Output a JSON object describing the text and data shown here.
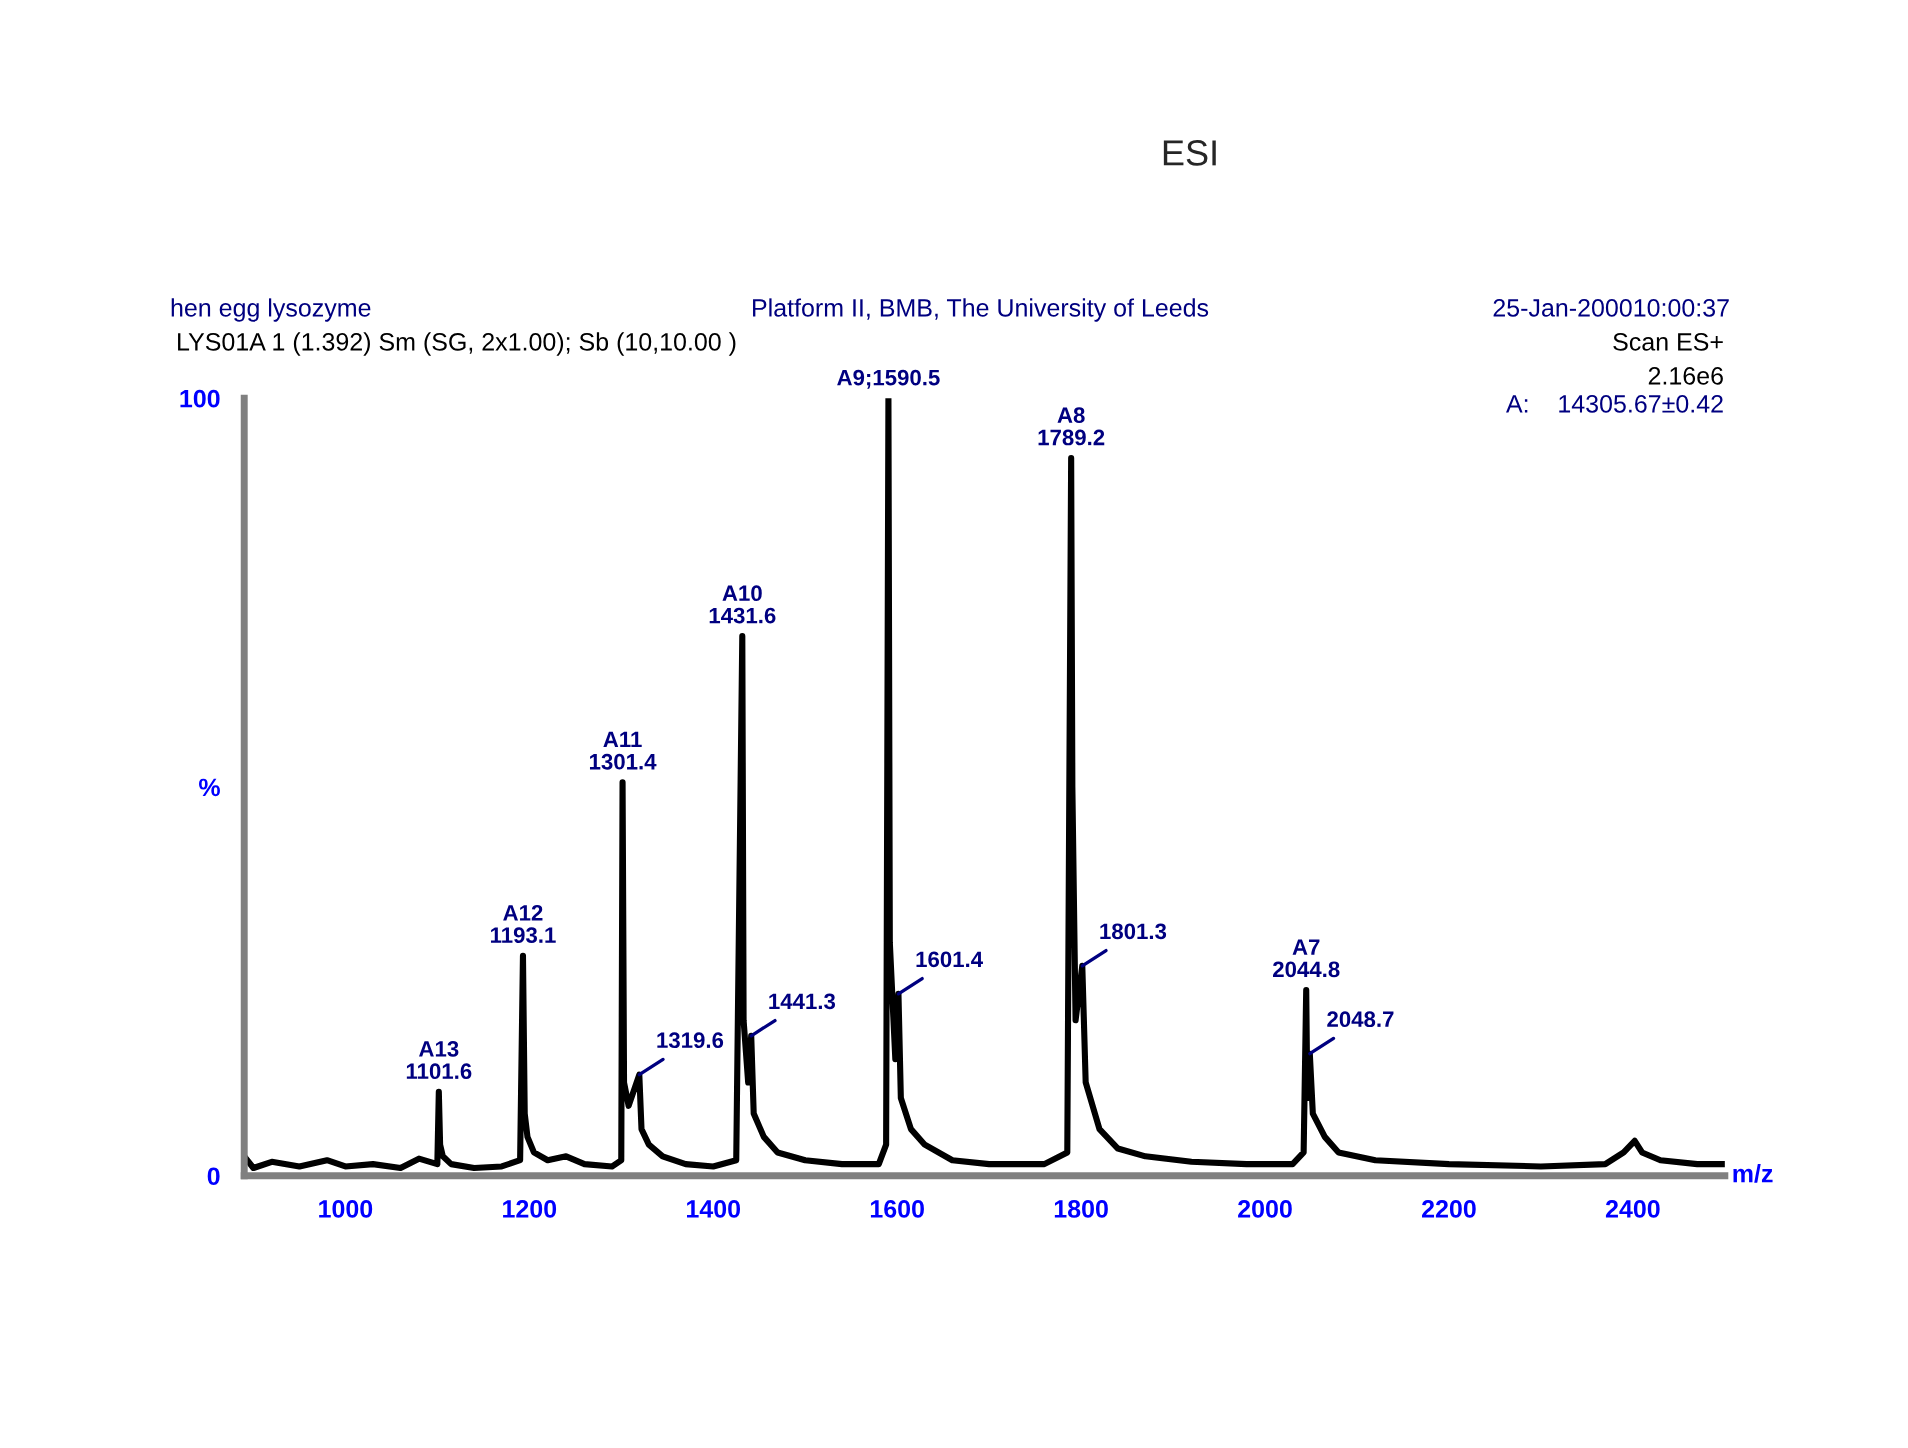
{
  "chart_data": {
    "type": "line",
    "title": "ESI",
    "xlabel": "m/z",
    "series": [
      {
        "color": "#000000",
        "x": [
          890,
          900,
          920,
          950,
          980,
          1000,
          1030,
          1060,
          1080,
          1100,
          1101.6,
          1103,
          1106,
          1115,
          1140,
          1170,
          1190,
          1193.1,
          1195,
          1198,
          1205,
          1220,
          1240,
          1260,
          1290,
          1300,
          1301.4,
          1303,
          1308,
          1319.6,
          1322,
          1330,
          1345,
          1370,
          1400,
          1425,
          1431.6,
          1433,
          1438,
          1441.3,
          1444,
          1455,
          1470,
          1500,
          1540,
          1580,
          1588,
          1590.5,
          1592,
          1598,
          1601.4,
          1604,
          1615,
          1630,
          1660,
          1700,
          1760,
          1785,
          1789.2,
          1790.5,
          1794,
          1801.3,
          1805,
          1820,
          1840,
          1870,
          1920,
          1980,
          2030,
          2042,
          2044.8,
          2046,
          2048.7,
          2052,
          2065,
          2080,
          2120,
          2200,
          2300,
          2370,
          2390,
          2402,
          2410,
          2430,
          2470,
          2500
        ],
        "values": [
          2.5,
          1,
          1.8,
          1.2,
          2,
          1.2,
          1.5,
          1,
          2.2,
          1.5,
          10.8,
          4,
          2.5,
          1.5,
          1,
          1.2,
          2,
          28.3,
          8,
          5,
          3,
          2,
          2.5,
          1.5,
          1.2,
          2,
          50.6,
          12,
          9,
          13,
          6,
          4,
          2.5,
          1.5,
          1.2,
          2,
          69.4,
          20,
          12,
          18,
          8,
          5,
          3,
          2,
          1.5,
          1.5,
          4,
          100,
          30,
          15,
          23.4,
          10,
          6,
          4,
          2,
          1.5,
          1.5,
          3,
          92.3,
          50,
          20,
          27,
          12,
          6,
          3.5,
          2.5,
          1.8,
          1.5,
          1.5,
          3,
          23.9,
          10,
          15.7,
          8,
          5,
          3,
          2,
          1.5,
          1.2,
          1.5,
          3,
          4.5,
          3,
          2,
          1.5,
          1.5
        ]
      }
    ],
    "xlim": [
      890,
      2500
    ],
    "xticks": [
      1000,
      1200,
      1400,
      1600,
      1800,
      2000,
      2200,
      2400
    ],
    "ylim": [
      0,
      100
    ],
    "yticks": [
      0,
      {
        "value": 50,
        "label": "%"
      },
      100
    ],
    "grid": false,
    "legend": false,
    "marker": "none",
    "line_style": "solid",
    "annotations": [
      "hen egg lysozyme",
      "Platform II, BMB, The University of Leeds",
      "25-Jan-200010:00:37",
      "LYS01A 1 (1.392) Sm (SG, 2x1.00); Sb (10,10.00 )",
      "Scan ES+",
      "2.16e6",
      "A:    14305.67±0.42",
      {
        "text": "A13\n1101.6",
        "x": 1101.6,
        "y": 10.8
      },
      {
        "text": "A12\n1193.1",
        "x": 1193.1,
        "y": 28.3
      },
      {
        "text": "A11\n1301.4",
        "x": 1301.4,
        "y": 50.6
      },
      {
        "text": "A10\n1431.6",
        "x": 1431.6,
        "y": 69.4
      },
      {
        "text": "A9;1590.5",
        "x": 1590.5,
        "y": 100
      },
      {
        "text": "A8\n1789.2",
        "x": 1789.2,
        "y": 92.3
      },
      {
        "text": "A7\n2044.8",
        "x": 2044.8,
        "y": 23.9
      },
      {
        "text": "1319.6",
        "x": 1319.6,
        "y": 13
      },
      {
        "text": "1441.3",
        "x": 1441.3,
        "y": 18
      },
      {
        "text": "1601.4",
        "x": 1601.4,
        "y": 23.4
      },
      {
        "text": "1801.3",
        "x": 1801.3,
        "y": 27
      },
      {
        "text": "2048.7",
        "x": 2048.7,
        "y": 15.7
      }
    ]
  }
}
